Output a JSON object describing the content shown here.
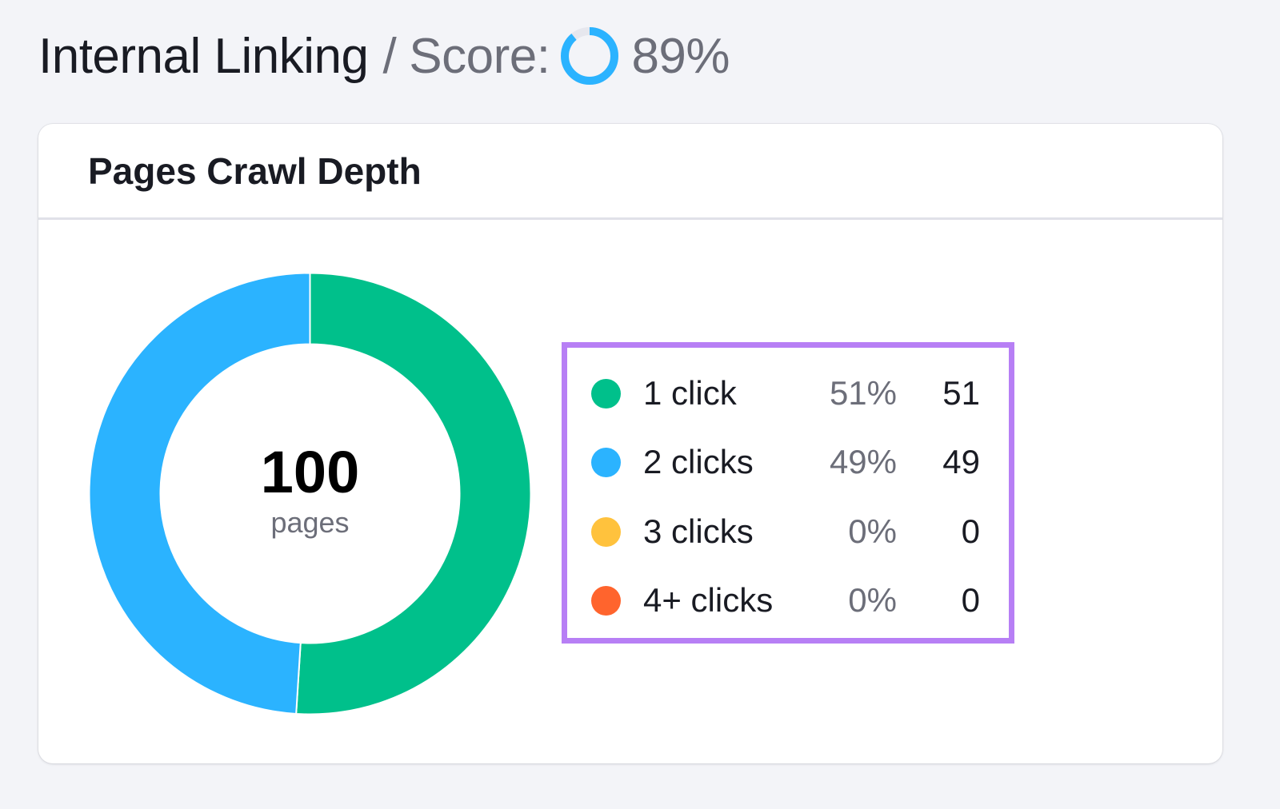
{
  "header": {
    "title": "Internal Linking",
    "separator": "/",
    "score_label": "Score:",
    "score_value": "89%",
    "score_percent": 89,
    "score_color": "#2bb3ff",
    "score_track_color": "#e6e7ee"
  },
  "card": {
    "title": "Pages Crawl Depth",
    "donut": {
      "total": "100",
      "unit": "pages"
    },
    "legend": [
      {
        "label": "1 click",
        "percent": "51%",
        "count": "51",
        "color": "#00c08b"
      },
      {
        "label": "2 clicks",
        "percent": "49%",
        "count": "49",
        "color": "#2bb3ff"
      },
      {
        "label": "3 clicks",
        "percent": "0%",
        "count": "0",
        "color": "#ffc23d"
      },
      {
        "label": "4+ clicks",
        "percent": "0%",
        "count": "0",
        "color": "#ff642d"
      }
    ],
    "legend_highlight_color": "#b77ff5"
  },
  "chart_data": {
    "type": "pie",
    "variant": "donut",
    "title": "Pages Crawl Depth",
    "center_label": {
      "value": 100,
      "unit": "pages"
    },
    "categories": [
      "1 click",
      "2 clicks",
      "3 clicks",
      "4+ clicks"
    ],
    "values": [
      51,
      49,
      0,
      0
    ],
    "percentages": [
      51,
      49,
      0,
      0
    ],
    "colors": [
      "#00c08b",
      "#2bb3ff",
      "#ffc23d",
      "#ff642d"
    ],
    "legend_position": "right"
  }
}
